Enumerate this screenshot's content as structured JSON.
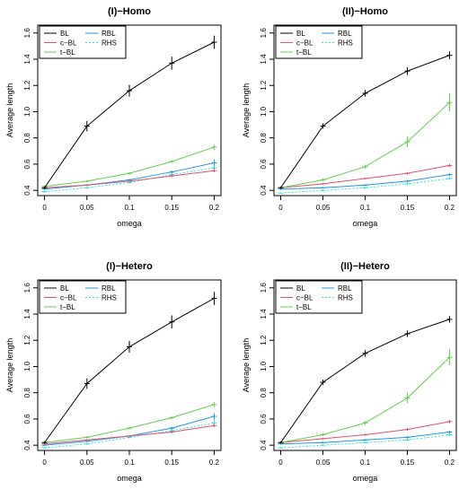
{
  "figure": {
    "ylabel": "Average length",
    "xlabel": "omega",
    "xticks": [
      "0",
      "0.05",
      "0.1",
      "0.15",
      "0.2"
    ],
    "yticks": [
      "0.4",
      "0.6",
      "0.8",
      "1.0",
      "1.2",
      "1.4",
      "1.6"
    ]
  },
  "series_styles": [
    {
      "name": "BL",
      "color": "#000000",
      "dash": "solid"
    },
    {
      "name": "c−BL",
      "color": "#df536b",
      "dash": "solid"
    },
    {
      "name": "t−BL",
      "color": "#61d04f",
      "dash": "solid"
    },
    {
      "name": "RBL",
      "color": "#2297e6",
      "dash": "solid"
    },
    {
      "name": "RHS",
      "color": "#28e2e5",
      "dash": "dotted"
    }
  ],
  "chart_data": [
    {
      "type": "line",
      "title": "(I)−Homo",
      "xlabel": "omega",
      "ylabel": "Average length",
      "x": [
        0,
        0.05,
        0.1,
        0.15,
        0.2
      ],
      "ylim": [
        0.4,
        1.6
      ],
      "legend": "top-left",
      "series": [
        {
          "name": "BL",
          "values": [
            0.42,
            0.89,
            1.16,
            1.37,
            1.53
          ],
          "err": [
            0.01,
            0.04,
            0.045,
            0.05,
            0.05
          ]
        },
        {
          "name": "c−BL",
          "values": [
            0.42,
            0.44,
            0.47,
            0.51,
            0.55
          ],
          "err": [
            0.005,
            0.006,
            0.008,
            0.01,
            0.012
          ]
        },
        {
          "name": "t−BL",
          "values": [
            0.43,
            0.47,
            0.53,
            0.62,
            0.73
          ],
          "err": [
            0.005,
            0.008,
            0.01,
            0.012,
            0.02
          ]
        },
        {
          "name": "RBL",
          "values": [
            0.41,
            0.44,
            0.48,
            0.54,
            0.61
          ],
          "err": [
            0.005,
            0.007,
            0.009,
            0.012,
            0.025
          ]
        },
        {
          "name": "RHS",
          "values": [
            0.39,
            0.42,
            0.46,
            0.52,
            0.57
          ],
          "err": [
            0.005,
            0.007,
            0.009,
            0.011,
            0.02
          ]
        }
      ]
    },
    {
      "type": "line",
      "title": "(II)−Homo",
      "xlabel": "omega",
      "ylabel": "Average length",
      "x": [
        0,
        0.05,
        0.1,
        0.15,
        0.2
      ],
      "ylim": [
        0.4,
        1.6
      ],
      "legend": "top-left",
      "series": [
        {
          "name": "BL",
          "values": [
            0.42,
            0.89,
            1.14,
            1.31,
            1.43
          ],
          "err": [
            0.01,
            0.02,
            0.025,
            0.03,
            0.03
          ]
        },
        {
          "name": "c−BL",
          "values": [
            0.42,
            0.45,
            0.49,
            0.53,
            0.59
          ],
          "err": [
            0.005,
            0.007,
            0.008,
            0.01,
            0.012
          ]
        },
        {
          "name": "t−BL",
          "values": [
            0.42,
            0.48,
            0.58,
            0.77,
            1.07
          ],
          "err": [
            0.005,
            0.01,
            0.015,
            0.04,
            0.07
          ]
        },
        {
          "name": "RBL",
          "values": [
            0.41,
            0.42,
            0.44,
            0.47,
            0.52
          ],
          "err": [
            0.005,
            0.006,
            0.007,
            0.009,
            0.011
          ]
        },
        {
          "name": "RHS",
          "values": [
            0.38,
            0.4,
            0.42,
            0.45,
            0.49
          ],
          "err": [
            0.005,
            0.006,
            0.007,
            0.008,
            0.01
          ]
        }
      ]
    },
    {
      "type": "line",
      "title": "(I)−Hetero",
      "xlabel": "omega",
      "ylabel": "Average length",
      "x": [
        0,
        0.05,
        0.1,
        0.15,
        0.2
      ],
      "ylim": [
        0.4,
        1.6
      ],
      "legend": "top-left",
      "series": [
        {
          "name": "BL",
          "values": [
            0.42,
            0.87,
            1.15,
            1.34,
            1.52
          ],
          "err": [
            0.01,
            0.04,
            0.045,
            0.05,
            0.05
          ]
        },
        {
          "name": "c−BL",
          "values": [
            0.41,
            0.44,
            0.47,
            0.5,
            0.55
          ],
          "err": [
            0.005,
            0.006,
            0.008,
            0.01,
            0.012
          ]
        },
        {
          "name": "t−BL",
          "values": [
            0.42,
            0.46,
            0.53,
            0.61,
            0.71
          ],
          "err": [
            0.005,
            0.008,
            0.01,
            0.012,
            0.02
          ]
        },
        {
          "name": "RBL",
          "values": [
            0.4,
            0.43,
            0.47,
            0.53,
            0.62
          ],
          "err": [
            0.005,
            0.007,
            0.009,
            0.012,
            0.025
          ]
        },
        {
          "name": "RHS",
          "values": [
            0.38,
            0.41,
            0.46,
            0.51,
            0.57
          ],
          "err": [
            0.005,
            0.007,
            0.009,
            0.011,
            0.02
          ]
        }
      ]
    },
    {
      "type": "line",
      "title": "(II)−Hetero",
      "xlabel": "omega",
      "ylabel": "Average length",
      "x": [
        0,
        0.05,
        0.1,
        0.15,
        0.2
      ],
      "ylim": [
        0.4,
        1.6
      ],
      "legend": "top-left",
      "series": [
        {
          "name": "BL",
          "values": [
            0.42,
            0.88,
            1.1,
            1.25,
            1.36
          ],
          "err": [
            0.01,
            0.02,
            0.025,
            0.025,
            0.025
          ]
        },
        {
          "name": "c−BL",
          "values": [
            0.42,
            0.45,
            0.48,
            0.52,
            0.58
          ],
          "err": [
            0.005,
            0.007,
            0.008,
            0.01,
            0.012
          ]
        },
        {
          "name": "t−BL",
          "values": [
            0.42,
            0.48,
            0.57,
            0.76,
            1.07
          ],
          "err": [
            0.005,
            0.01,
            0.015,
            0.04,
            0.06
          ]
        },
        {
          "name": "RBL",
          "values": [
            0.41,
            0.42,
            0.44,
            0.46,
            0.5
          ],
          "err": [
            0.005,
            0.006,
            0.007,
            0.009,
            0.011
          ]
        },
        {
          "name": "RHS",
          "values": [
            0.38,
            0.4,
            0.42,
            0.44,
            0.48
          ],
          "err": [
            0.005,
            0.006,
            0.007,
            0.008,
            0.01
          ]
        }
      ]
    }
  ]
}
